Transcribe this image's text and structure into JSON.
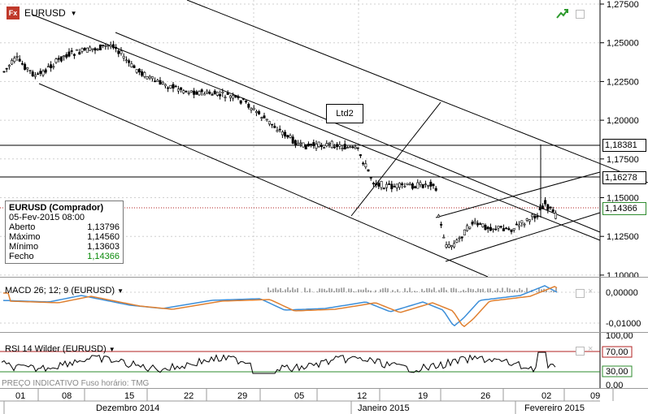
{
  "symbol": "EURUSD",
  "colors": {
    "up": "#000000",
    "down": "#000000",
    "grid": "#bdbdbd",
    "green_line": "#2e8b2e",
    "red_line": "#b22222",
    "macd": "#3b8ed9",
    "signal": "#e08030"
  },
  "price_axis": [
    "1,27500",
    "1,25000",
    "1,22500",
    "1,20000",
    "1,17500",
    "1,15000",
    "1,12500",
    "1,10000"
  ],
  "price_tags": {
    "p1": "1,18381",
    "p2": "1,16278",
    "p3": "1,14366"
  },
  "annotation": {
    "label": "Ltd2"
  },
  "info_box": {
    "title": "EURUSD (Comprador)",
    "date": "05-Fev-2015 08:00",
    "rows": [
      {
        "label": "Aberto",
        "value": "1,13796"
      },
      {
        "label": "Máximo",
        "value": "1,14560"
      },
      {
        "label": "Mínimo",
        "value": "1,13603"
      },
      {
        "label": "Fecho",
        "value": "1,14366"
      }
    ]
  },
  "macd": {
    "title": "MACD 26; 12; 9 (EURUSD)",
    "axis": [
      "0,00000",
      "-0,01000"
    ]
  },
  "rsi": {
    "title": "RSI 14 Wilder (EURUSD)",
    "axis": [
      "100,00",
      "70,00",
      "30,00",
      "0,00"
    ]
  },
  "footer": {
    "note": "PREÇO INDICATIVO    Fuso horário: TMG"
  },
  "xaxis": {
    "days": [
      "01",
      "08",
      "15",
      "22",
      "29",
      "05",
      "12",
      "19",
      "26",
      "02",
      "09"
    ],
    "months": [
      "Dezembro 2014",
      "Janeiro 2015",
      "Fevereiro 2015"
    ]
  }
}
